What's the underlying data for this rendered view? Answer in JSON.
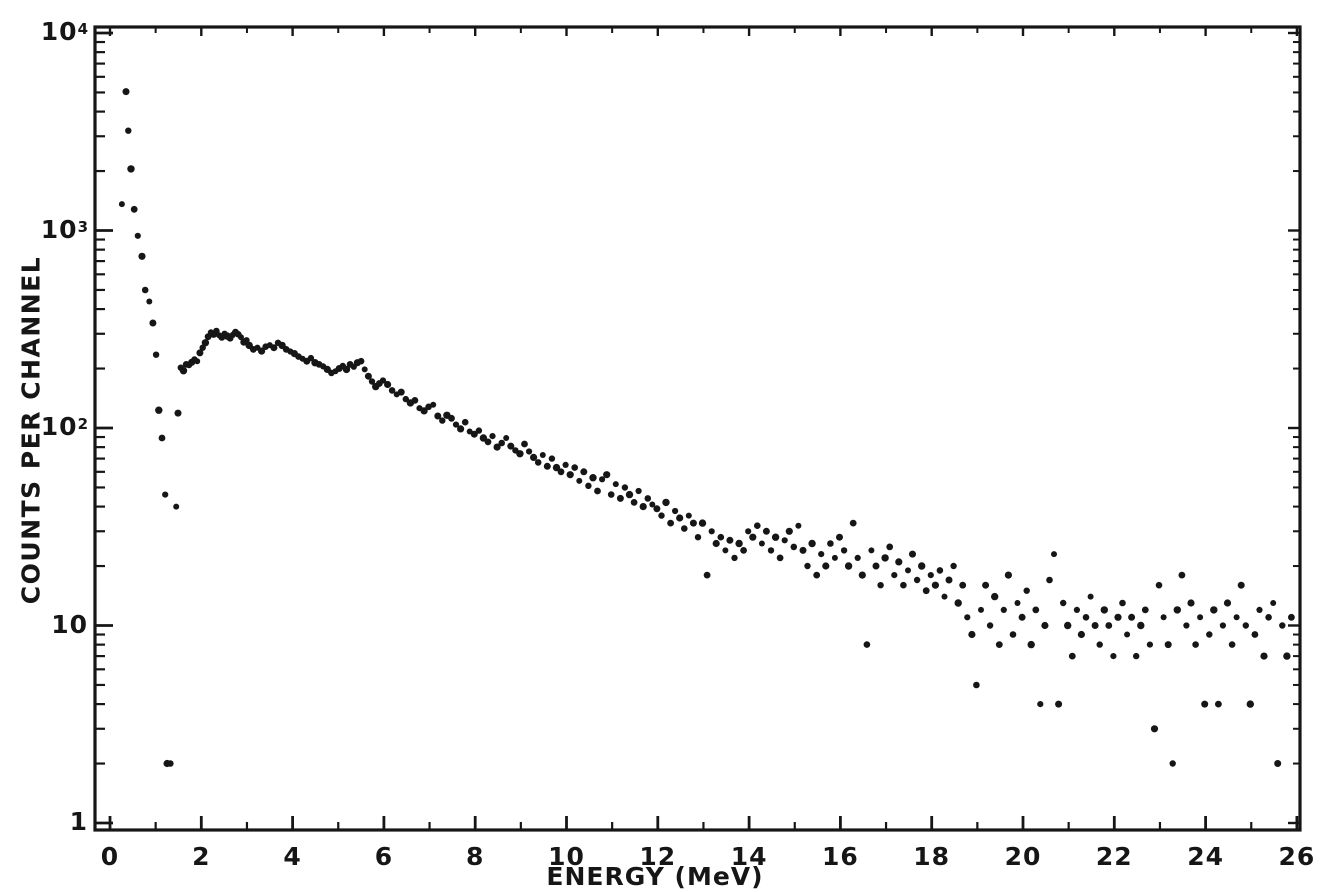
{
  "figure": {
    "background": "#ffffff",
    "ink_color": "#161616"
  },
  "chart_data": {
    "type": "scatter",
    "title": "",
    "xlabel": "ENERGY (MeV)",
    "ylabel": "COUNTS PER CHANNEL",
    "legend": "none",
    "grid": false,
    "marker": {
      "shape": "dot",
      "color": "#161616"
    },
    "x_axis": {
      "scale": "linear",
      "min": 0,
      "max": 26,
      "major_ticks": [
        0,
        2,
        4,
        6,
        8,
        10,
        12,
        14,
        16,
        18,
        20,
        22,
        24,
        26
      ],
      "minor_ticks": [
        1,
        3,
        5,
        7,
        9,
        11,
        13,
        15,
        17,
        19,
        21,
        23,
        25
      ],
      "tick_labels": [
        "0",
        "2",
        "4",
        "6",
        "8",
        "10",
        "12",
        "14",
        "16",
        "18",
        "20",
        "22",
        "24",
        "26"
      ]
    },
    "y_axis": {
      "scale": "log",
      "min": 1,
      "max": 10000,
      "decade_values": [
        1,
        10,
        100,
        1000,
        10000
      ],
      "tick_labels": [
        {
          "base": "10",
          "exp": "4",
          "value": 10000
        },
        {
          "base": "10",
          "exp": "3",
          "value": 1000
        },
        {
          "base": "10",
          "exp": "2",
          "value": 100
        },
        {
          "base": "10",
          "exp": "",
          "value": 10
        },
        {
          "base": "1",
          "exp": "",
          "value": 1
        }
      ]
    },
    "points": [
      [
        0.26,
        1360
      ],
      [
        0.35,
        5050
      ],
      [
        0.4,
        3200
      ],
      [
        0.46,
        2050
      ],
      [
        0.53,
        1280
      ],
      [
        0.61,
        940
      ],
      [
        0.7,
        740
      ],
      [
        0.77,
        500
      ],
      [
        0.86,
        437
      ],
      [
        0.94,
        340
      ],
      [
        1.01,
        235
      ],
      [
        1.07,
        123
      ],
      [
        1.14,
        89
      ],
      [
        1.21,
        46
      ],
      [
        1.25,
        2
      ],
      [
        1.32,
        2
      ],
      [
        1.45,
        40
      ],
      [
        1.49,
        119
      ],
      [
        1.55,
        202
      ],
      [
        1.61,
        195
      ],
      [
        1.67,
        210
      ],
      [
        1.73,
        208
      ],
      [
        1.79,
        215
      ],
      [
        1.85,
        222
      ],
      [
        1.91,
        218
      ],
      [
        1.97,
        240
      ],
      [
        2.03,
        255
      ],
      [
        2.09,
        270
      ],
      [
        2.15,
        290
      ],
      [
        2.21,
        305
      ],
      [
        2.27,
        298
      ],
      [
        2.33,
        310
      ],
      [
        2.39,
        295
      ],
      [
        2.45,
        288
      ],
      [
        2.51,
        300
      ],
      [
        2.57,
        292
      ],
      [
        2.63,
        285
      ],
      [
        2.69,
        296
      ],
      [
        2.75,
        305
      ],
      [
        2.81,
        298
      ],
      [
        2.87,
        288
      ],
      [
        2.93,
        272
      ],
      [
        2.99,
        278
      ],
      [
        3.05,
        262
      ],
      [
        3.14,
        250
      ],
      [
        3.23,
        255
      ],
      [
        3.32,
        245
      ],
      [
        3.41,
        258
      ],
      [
        3.5,
        263
      ],
      [
        3.59,
        255
      ],
      [
        3.68,
        270
      ],
      [
        3.77,
        262
      ],
      [
        3.86,
        250
      ],
      [
        3.95,
        244
      ],
      [
        4.04,
        238
      ],
      [
        4.13,
        230
      ],
      [
        4.22,
        224
      ],
      [
        4.31,
        218
      ],
      [
        4.4,
        226
      ],
      [
        4.49,
        214
      ],
      [
        4.58,
        210
      ],
      [
        4.67,
        205
      ],
      [
        4.76,
        198
      ],
      [
        4.85,
        190
      ],
      [
        4.94,
        194
      ],
      [
        5.02,
        200
      ],
      [
        5.1,
        206
      ],
      [
        5.18,
        198
      ],
      [
        5.26,
        210
      ],
      [
        5.34,
        204
      ],
      [
        5.42,
        214
      ],
      [
        5.5,
        218
      ],
      [
        5.58,
        198
      ],
      [
        5.66,
        183
      ],
      [
        5.74,
        172
      ],
      [
        5.82,
        162
      ],
      [
        5.9,
        168
      ],
      [
        5.98,
        174
      ],
      [
        6.08,
        166
      ],
      [
        6.18,
        155
      ],
      [
        6.28,
        148
      ],
      [
        6.38,
        152
      ],
      [
        6.48,
        140
      ],
      [
        6.58,
        134
      ],
      [
        6.68,
        138
      ],
      [
        6.78,
        126
      ],
      [
        6.88,
        122
      ],
      [
        6.98,
        128
      ],
      [
        7.08,
        131
      ],
      [
        7.18,
        115
      ],
      [
        7.28,
        109
      ],
      [
        7.38,
        116
      ],
      [
        7.48,
        112
      ],
      [
        7.58,
        104
      ],
      [
        7.68,
        99
      ],
      [
        7.78,
        107
      ],
      [
        7.88,
        96
      ],
      [
        7.98,
        93
      ],
      [
        8.08,
        97
      ],
      [
        8.18,
        89
      ],
      [
        8.28,
        85
      ],
      [
        8.38,
        91
      ],
      [
        8.48,
        80
      ],
      [
        8.58,
        84
      ],
      [
        8.68,
        89
      ],
      [
        8.78,
        81
      ],
      [
        8.88,
        77
      ],
      [
        8.98,
        74
      ],
      [
        9.08,
        83
      ],
      [
        9.18,
        76
      ],
      [
        9.28,
        71
      ],
      [
        9.38,
        67
      ],
      [
        9.48,
        73
      ],
      [
        9.58,
        64
      ],
      [
        9.68,
        70
      ],
      [
        9.78,
        63
      ],
      [
        9.88,
        60
      ],
      [
        9.98,
        65
      ],
      [
        10.08,
        58
      ],
      [
        10.18,
        63
      ],
      [
        10.28,
        54
      ],
      [
        10.38,
        60
      ],
      [
        10.48,
        51
      ],
      [
        10.58,
        56
      ],
      [
        10.68,
        48
      ],
      [
        10.78,
        55
      ],
      [
        10.88,
        58
      ],
      [
        10.98,
        46
      ],
      [
        11.08,
        52
      ],
      [
        11.18,
        44
      ],
      [
        11.28,
        50
      ],
      [
        11.38,
        46
      ],
      [
        11.48,
        42
      ],
      [
        11.58,
        48
      ],
      [
        11.68,
        40
      ],
      [
        11.78,
        44
      ],
      [
        11.88,
        41
      ],
      [
        11.98,
        39
      ],
      [
        12.08,
        36
      ],
      [
        12.18,
        42
      ],
      [
        12.28,
        33
      ],
      [
        12.38,
        38
      ],
      [
        12.48,
        35
      ],
      [
        12.58,
        31
      ],
      [
        12.68,
        36
      ],
      [
        12.78,
        33
      ],
      [
        12.88,
        28
      ],
      [
        12.98,
        33
      ],
      [
        13.08,
        18
      ],
      [
        13.18,
        30
      ],
      [
        13.28,
        26
      ],
      [
        13.38,
        28
      ],
      [
        13.48,
        24
      ],
      [
        13.58,
        27
      ],
      [
        13.68,
        22
      ],
      [
        13.78,
        26
      ],
      [
        13.88,
        24
      ],
      [
        13.98,
        30
      ],
      [
        14.08,
        28
      ],
      [
        14.18,
        32
      ],
      [
        14.28,
        26
      ],
      [
        14.38,
        30
      ],
      [
        14.48,
        24
      ],
      [
        14.58,
        28
      ],
      [
        14.68,
        22
      ],
      [
        14.78,
        27
      ],
      [
        14.88,
        30
      ],
      [
        14.98,
        25
      ],
      [
        15.08,
        32
      ],
      [
        15.18,
        24
      ],
      [
        15.28,
        20
      ],
      [
        15.38,
        26
      ],
      [
        15.48,
        18
      ],
      [
        15.58,
        23
      ],
      [
        15.68,
        20
      ],
      [
        15.78,
        26
      ],
      [
        15.88,
        22
      ],
      [
        15.98,
        28
      ],
      [
        16.08,
        24
      ],
      [
        16.18,
        20
      ],
      [
        16.28,
        33
      ],
      [
        16.38,
        22
      ],
      [
        16.48,
        18
      ],
      [
        16.58,
        8
      ],
      [
        16.68,
        24
      ],
      [
        16.78,
        20
      ],
      [
        16.88,
        16
      ],
      [
        16.98,
        22
      ],
      [
        17.08,
        25
      ],
      [
        17.18,
        18
      ],
      [
        17.28,
        21
      ],
      [
        17.38,
        16
      ],
      [
        17.48,
        19
      ],
      [
        17.58,
        23
      ],
      [
        17.68,
        17
      ],
      [
        17.78,
        20
      ],
      [
        17.88,
        15
      ],
      [
        17.98,
        18
      ],
      [
        18.08,
        16
      ],
      [
        18.18,
        19
      ],
      [
        18.28,
        14
      ],
      [
        18.38,
        17
      ],
      [
        18.48,
        20
      ],
      [
        18.58,
        13
      ],
      [
        18.68,
        16
      ],
      [
        18.78,
        11
      ],
      [
        18.88,
        9
      ],
      [
        18.98,
        5
      ],
      [
        19.08,
        12
      ],
      [
        19.18,
        16
      ],
      [
        19.28,
        10
      ],
      [
        19.38,
        14
      ],
      [
        19.48,
        8
      ],
      [
        19.58,
        12
      ],
      [
        19.68,
        18
      ],
      [
        19.78,
        9
      ],
      [
        19.88,
        13
      ],
      [
        19.98,
        11
      ],
      [
        20.08,
        15
      ],
      [
        20.18,
        8
      ],
      [
        20.28,
        12
      ],
      [
        20.38,
        4
      ],
      [
        20.48,
        10
      ],
      [
        20.58,
        17
      ],
      [
        20.68,
        23
      ],
      [
        20.78,
        4
      ],
      [
        20.88,
        13
      ],
      [
        20.98,
        10
      ],
      [
        21.08,
        7
      ],
      [
        21.18,
        12
      ],
      [
        21.28,
        9
      ],
      [
        21.38,
        11
      ],
      [
        21.48,
        14
      ],
      [
        21.58,
        10
      ],
      [
        21.68,
        8
      ],
      [
        21.78,
        12
      ],
      [
        21.88,
        10
      ],
      [
        21.98,
        7
      ],
      [
        22.08,
        11
      ],
      [
        22.18,
        13
      ],
      [
        22.28,
        9
      ],
      [
        22.38,
        11
      ],
      [
        22.48,
        7
      ],
      [
        22.58,
        10
      ],
      [
        22.68,
        12
      ],
      [
        22.78,
        8
      ],
      [
        22.88,
        3
      ],
      [
        22.98,
        16
      ],
      [
        23.08,
        11
      ],
      [
        23.18,
        8
      ],
      [
        23.28,
        2
      ],
      [
        23.38,
        12
      ],
      [
        23.48,
        18
      ],
      [
        23.58,
        10
      ],
      [
        23.68,
        13
      ],
      [
        23.78,
        8
      ],
      [
        23.88,
        11
      ],
      [
        23.98,
        4
      ],
      [
        24.08,
        9
      ],
      [
        24.18,
        12
      ],
      [
        24.28,
        4
      ],
      [
        24.38,
        10
      ],
      [
        24.48,
        13
      ],
      [
        24.58,
        8
      ],
      [
        24.68,
        11
      ],
      [
        24.78,
        16
      ],
      [
        24.88,
        10
      ],
      [
        24.98,
        4
      ],
      [
        25.08,
        9
      ],
      [
        25.18,
        12
      ],
      [
        25.28,
        7
      ],
      [
        25.38,
        11
      ],
      [
        25.48,
        13
      ],
      [
        25.58,
        2
      ],
      [
        25.68,
        10
      ],
      [
        25.78,
        7
      ],
      [
        25.88,
        11
      ]
    ]
  }
}
